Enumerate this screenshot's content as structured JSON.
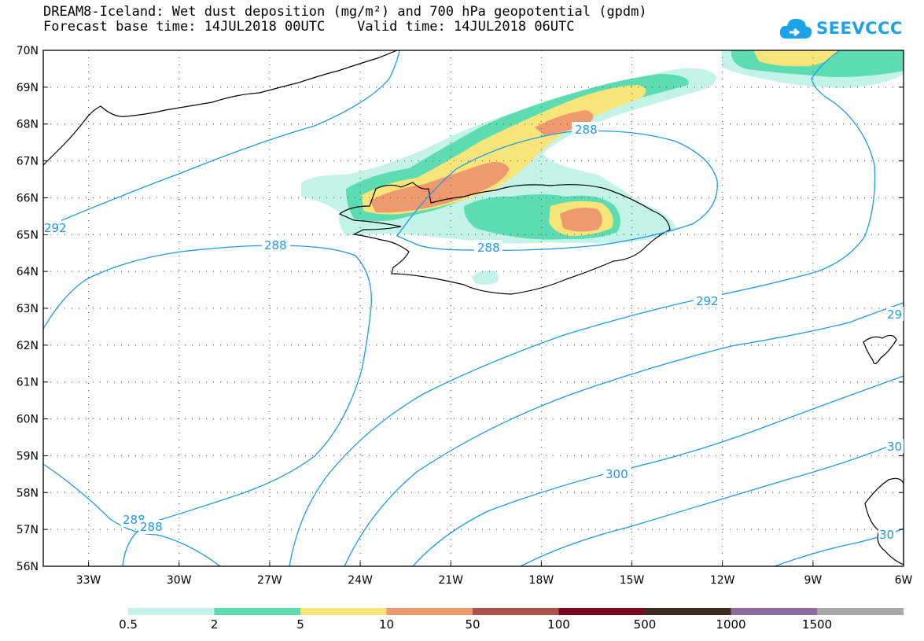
{
  "header": {
    "title_line1": "DREAM8-Iceland: Wet dust deposition (mg/m²) and 700 hPa geopotential (gpdm)",
    "title_line2": "Forecast base time: 14JUL2018 00UTC    Valid time: 14JUL2018 06UTC"
  },
  "logo": {
    "text": "SEEVCCC",
    "icon": "cloud-logo-icon",
    "color": "#1aa3e8"
  },
  "map": {
    "lat_labels": [
      "70N",
      "69N",
      "68N",
      "67N",
      "66N",
      "65N",
      "64N",
      "63N",
      "62N",
      "61N",
      "60N",
      "59N",
      "58N",
      "57N",
      "56N"
    ],
    "lon_labels": [
      "33W",
      "30W",
      "27W",
      "24W",
      "21W",
      "18W",
      "15W",
      "12W",
      "9W",
      "6W"
    ],
    "contour_color": "#1a9be6",
    "contour_labels": [
      {
        "text": "288",
        "name": "contour-label-288-north"
      },
      {
        "text": "288",
        "name": "contour-label-288-iceland"
      },
      {
        "text": "288",
        "name": "contour-label-288-mid"
      },
      {
        "text": "292",
        "name": "contour-label-292-west"
      },
      {
        "text": "292",
        "name": "contour-label-292-east"
      },
      {
        "text": "288",
        "name": "contour-label-288-sw-a"
      },
      {
        "text": "288",
        "name": "contour-label-288-sw-b"
      },
      {
        "text": "300",
        "name": "contour-label-300"
      },
      {
        "text": "29",
        "name": "contour-label-29-edge"
      },
      {
        "text": "30",
        "name": "contour-label-30-edge"
      },
      {
        "text": "30",
        "name": "contour-label-30-edge-b"
      }
    ]
  },
  "legend": {
    "colors": [
      "#c2f2e8",
      "#5cdcb0",
      "#f7e57a",
      "#ef9a6e",
      "#a8534a",
      "#7d0622",
      "#3c2a1e",
      "#8c6aa0",
      "#a9a9a9"
    ],
    "labels": [
      "0.5",
      "2",
      "5",
      "10",
      "50",
      "100",
      "500",
      "1000",
      "1500"
    ]
  }
}
